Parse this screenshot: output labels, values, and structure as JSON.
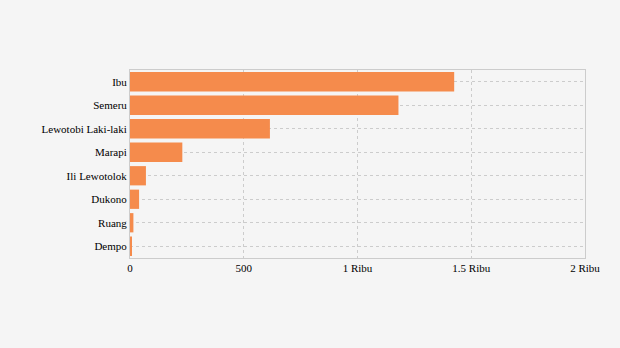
{
  "chart_data": {
    "type": "bar",
    "orientation": "horizontal",
    "categories": [
      "Ibu",
      "Semeru",
      "Lewotobi Laki-laki",
      "Marapi",
      "Ili Lewotolok",
      "Dukono",
      "Ruang",
      "Dempo"
    ],
    "values": [
      1425,
      1180,
      615,
      230,
      70,
      40,
      15,
      5
    ],
    "color": "#f58b4c",
    "xlim": [
      0,
      2000
    ],
    "xticks": [
      0,
      500,
      {
        "value": 1000,
        "label": "1 Ribu"
      },
      {
        "value": 1500,
        "label": "1.5 Ribu"
      },
      {
        "value": 2000,
        "label": "2 Ribu"
      }
    ],
    "grid": true
  }
}
